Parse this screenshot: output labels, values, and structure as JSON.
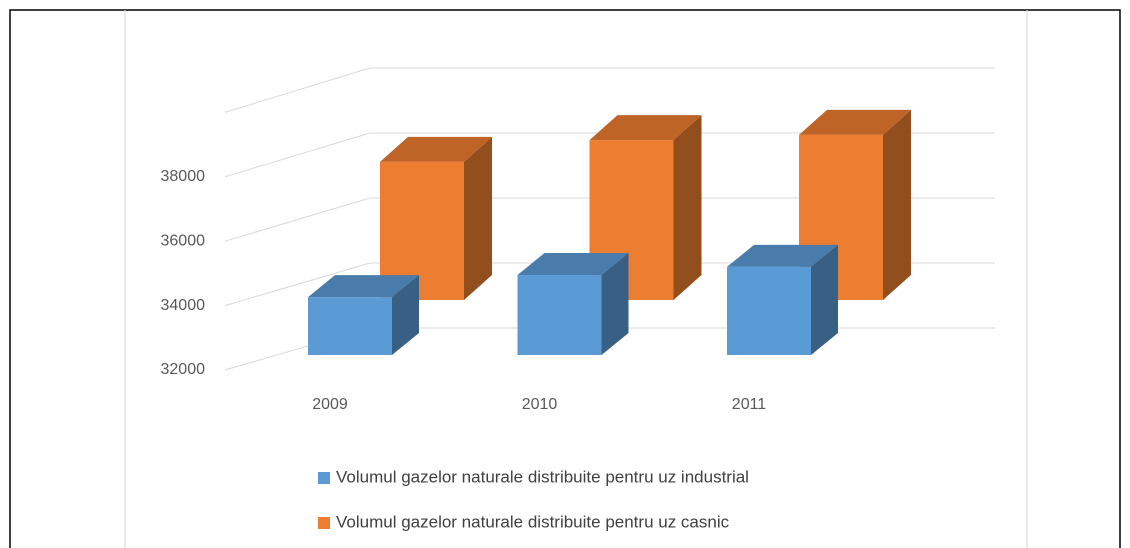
{
  "chart_data": {
    "type": "bar3d",
    "categories": [
      "2009",
      "2010",
      "2011"
    ],
    "series": [
      {
        "name": "Volumul gazelor naturale distribuite pentru uz industrial",
        "color": "#5b9bd5",
        "values": [
          33780,
          34460,
          34710
        ]
      },
      {
        "name": "Volumul gazelor naturale distribuite pentru uz casnic",
        "color": "#ed7d31",
        "values": [
          36250,
          36920,
          37080
        ]
      }
    ],
    "ylim": [
      32000,
      40000
    ],
    "yticks": [
      32000,
      34000,
      36000,
      38000
    ],
    "grid": true,
    "legend": "bottom"
  }
}
